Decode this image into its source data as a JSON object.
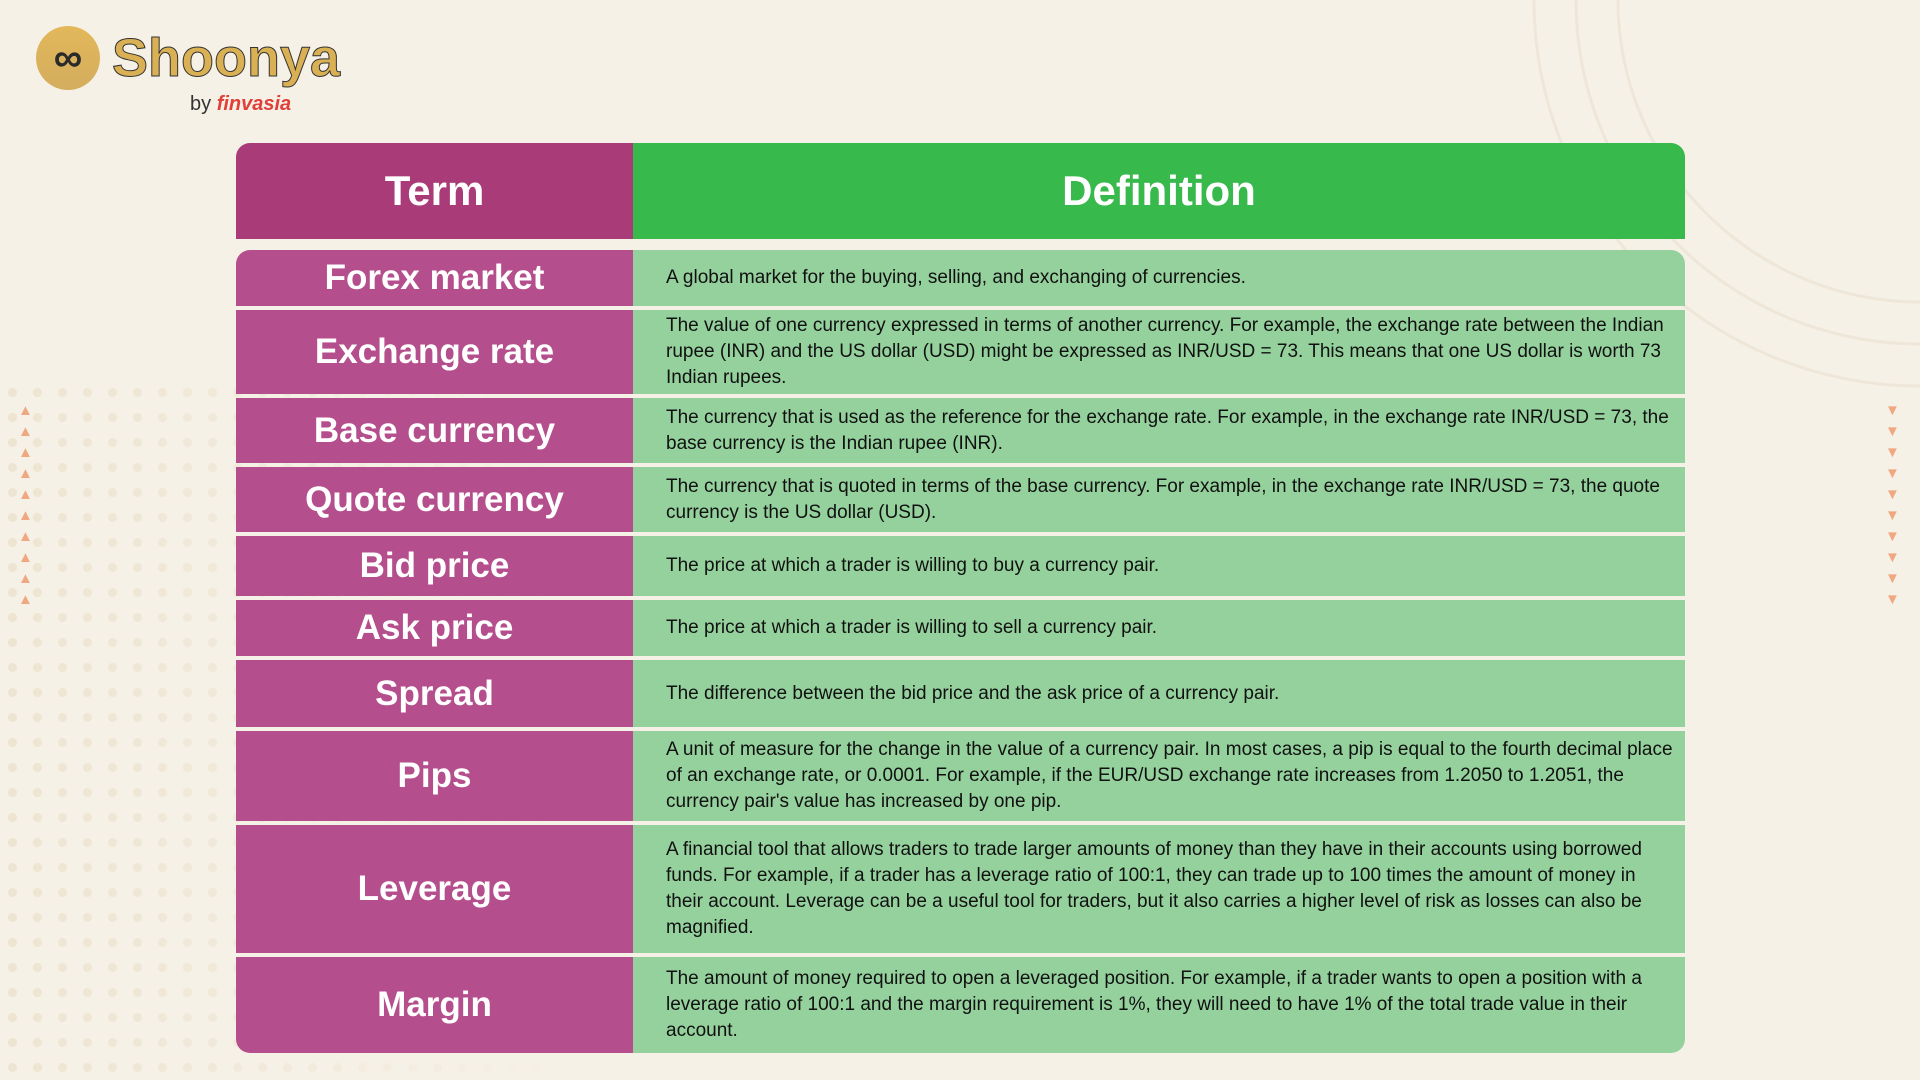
{
  "logo": {
    "brand": "Shoonya",
    "by": "by",
    "company": "finvasia",
    "mark": "∞"
  },
  "colors": {
    "term_header": "#a93b78",
    "term_cell": "#b54e8c",
    "definition_header": "#37b94b",
    "definition_cell": "#95d19d",
    "background": "#f6f1e6"
  },
  "table": {
    "headers": {
      "term": "Term",
      "definition": "Definition"
    },
    "rows": [
      {
        "term": "Forex market",
        "definition": "A global market for the buying, selling, and exchanging of currencies."
      },
      {
        "term": "Exchange rate",
        "definition": "The value of one currency expressed in terms of another currency. For example, the exchange rate between the Indian rupee (INR) and the US dollar (USD) might be expressed as INR/USD = 73. This means that one US dollar is worth 73 Indian rupees."
      },
      {
        "term": "Base currency",
        "definition": "The currency that is used as the reference for the exchange rate. For example, in the exchange rate INR/USD = 73, the base currency is the Indian rupee (INR)."
      },
      {
        "term": "Quote currency",
        "definition": "The currency that is quoted in terms of the base currency. For example, in the exchange rate INR/USD = 73, the quote currency is the US dollar (USD)."
      },
      {
        "term": "Bid price",
        "definition": "The price at which a trader is willing to buy a currency pair."
      },
      {
        "term": "Ask price",
        "definition": "The price at which a trader is willing to sell a currency pair."
      },
      {
        "term": "Spread",
        "definition": "The difference between the bid price and the ask price of a currency pair."
      },
      {
        "term": "Pips",
        "definition": "A unit of measure for the change in the value of a currency pair. In most cases, a pip is equal to the fourth decimal place of an exchange rate, or 0.0001. For example, if the EUR/USD exchange rate increases from 1.2050 to 1.2051, the currency pair's value has increased by one pip."
      },
      {
        "term": "Leverage",
        "definition": "A financial tool that allows traders to trade larger amounts of money than they have in their accounts using borrowed funds. For example, if a trader has a leverage ratio of 100:1, they can trade up to 100 times the amount of money in their account. Leverage can be a useful tool for traders, but it also carries a higher level of risk as losses can also be magnified."
      },
      {
        "term": "Margin",
        "definition": "The amount of money required to open a leveraged position. For example, if a trader wants to open a position with a leverage ratio of 100:1 and the margin requirement is 1%, they will need to have 1% of the total trade value in their account."
      }
    ]
  }
}
